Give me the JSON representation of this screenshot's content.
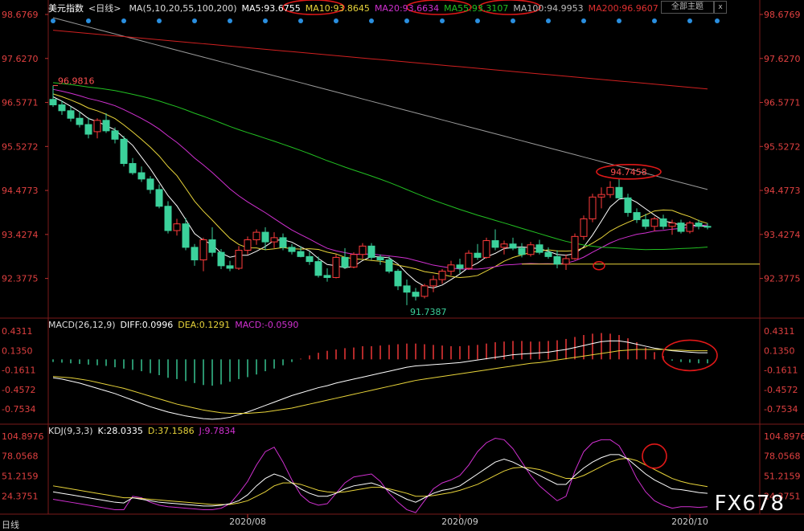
{
  "header": {
    "title": "美元指数",
    "period": "<日线>",
    "ma_label": "MA(5,10,20,55,100,200)",
    "ma5": "MA5:93.6755",
    "ma10": "MA10:93.8645",
    "ma20": "MA20:93.6634",
    "ma55": "MA55:93.3107",
    "ma100": "MA100:94.9953",
    "ma200": "MA200:96.9607",
    "theme_button": "全部主题",
    "close_button": "x"
  },
  "macd_header": {
    "label": "MACD(26,12,9)",
    "diff": "DIFF:0.0996",
    "dea": "DEA:0.1291",
    "macd": "MACD:-0.0590"
  },
  "kdj_header": {
    "label": "KDJ(9,3,3)",
    "k": "K:28.0335",
    "d": "D:37.1586",
    "j": "J:9.7834"
  },
  "watermark": "FX678",
  "tab": "日线",
  "colors": {
    "up": "#ff3b3b",
    "down": "#3bd19b",
    "ma5": "#ffffff",
    "ma10": "#e8d43a",
    "ma20": "#d030d0",
    "ma55": "#22c022",
    "ma100": "#9a9a9a",
    "ma200": "#d02020",
    "dots": "#2a8fe0",
    "annot": "#e01818"
  },
  "chart_data": [
    {
      "type": "candlestick",
      "title": "美元指数 日线",
      "y_ticks": [
        "98.6769",
        "97.6270",
        "96.5771",
        "95.5272",
        "94.4773",
        "93.4274",
        "92.3775"
      ],
      "ylim": [
        91.45,
        98.6769
      ],
      "x_ticks": [
        "2020/08",
        "2020/09",
        "2020/10"
      ],
      "annotations": {
        "high": "96.9816",
        "low": "91.7387",
        "peak": "94.7458",
        "support_level": 92.72
      },
      "ohlc": [
        [
          96.65,
          96.98,
          96.47,
          96.52
        ],
        [
          96.52,
          96.62,
          96.28,
          96.38
        ],
        [
          96.38,
          96.48,
          96.12,
          96.2
        ],
        [
          96.2,
          96.36,
          95.98,
          96.05
        ],
        [
          96.05,
          96.22,
          95.72,
          95.82
        ],
        [
          95.88,
          96.2,
          95.72,
          96.15
        ],
        [
          96.15,
          96.32,
          95.85,
          95.9
        ],
        [
          95.9,
          95.98,
          95.6,
          95.7
        ],
        [
          95.7,
          95.78,
          95.05,
          95.12
        ],
        [
          95.12,
          95.25,
          94.85,
          94.9
        ],
        [
          94.9,
          95.05,
          94.68,
          94.75
        ],
        [
          94.75,
          94.82,
          94.4,
          94.5
        ],
        [
          94.5,
          94.62,
          94.05,
          94.1
        ],
        [
          94.1,
          94.22,
          93.45,
          93.52
        ],
        [
          93.52,
          93.8,
          93.4,
          93.68
        ],
        [
          93.68,
          93.82,
          93.05,
          93.12
        ],
        [
          93.12,
          93.2,
          92.68,
          92.82
        ],
        [
          92.82,
          93.35,
          92.55,
          93.3
        ],
        [
          93.3,
          93.6,
          92.9,
          93.0
        ],
        [
          93.0,
          93.08,
          92.6,
          92.68
        ],
        [
          92.68,
          92.8,
          92.55,
          92.62
        ],
        [
          92.62,
          93.15,
          92.58,
          93.05
        ],
        [
          93.05,
          93.38,
          92.95,
          93.3
        ],
        [
          93.3,
          93.55,
          93.18,
          93.48
        ],
        [
          93.48,
          93.6,
          93.05,
          93.25
        ],
        [
          93.25,
          93.48,
          93.1,
          93.35
        ],
        [
          93.35,
          93.45,
          93.05,
          93.12
        ],
        [
          93.12,
          93.2,
          92.95,
          93.02
        ],
        [
          93.02,
          93.15,
          92.88,
          92.9
        ],
        [
          92.9,
          93.02,
          92.7,
          92.78
        ],
        [
          92.78,
          92.9,
          92.4,
          92.45
        ],
        [
          92.45,
          92.62,
          92.3,
          92.4
        ],
        [
          92.4,
          92.95,
          92.38,
          92.88
        ],
        [
          92.88,
          93.1,
          92.6,
          92.65
        ],
        [
          92.65,
          93.0,
          92.62,
          92.95
        ],
        [
          92.95,
          93.22,
          92.85,
          93.15
        ],
        [
          93.15,
          93.22,
          92.82,
          92.88
        ],
        [
          92.88,
          92.95,
          92.7,
          92.82
        ],
        [
          92.82,
          92.9,
          92.5,
          92.55
        ],
        [
          92.55,
          92.6,
          92.1,
          92.2
        ],
        [
          92.2,
          92.35,
          91.74,
          92.05
        ],
        [
          92.05,
          92.15,
          91.85,
          91.95
        ],
        [
          91.95,
          92.25,
          91.9,
          92.2
        ],
        [
          92.2,
          92.45,
          92.05,
          92.35
        ],
        [
          92.35,
          92.6,
          92.25,
          92.55
        ],
        [
          92.55,
          92.8,
          92.45,
          92.7
        ],
        [
          92.7,
          92.85,
          92.5,
          92.62
        ],
        [
          92.62,
          93.05,
          92.58,
          92.98
        ],
        [
          92.98,
          93.2,
          92.82,
          92.88
        ],
        [
          92.88,
          93.35,
          92.85,
          93.28
        ],
        [
          93.28,
          93.55,
          93.05,
          93.12
        ],
        [
          93.12,
          93.28,
          92.95,
          93.2
        ],
        [
          93.2,
          93.35,
          93.05,
          93.1
        ],
        [
          93.1,
          93.22,
          92.88,
          92.95
        ],
        [
          92.95,
          93.25,
          92.9,
          93.18
        ],
        [
          93.18,
          93.3,
          92.95,
          93.0
        ],
        [
          93.0,
          93.12,
          92.85,
          92.9
        ],
        [
          92.9,
          93.05,
          92.62,
          92.72
        ],
        [
          92.72,
          92.95,
          92.58,
          92.85
        ],
        [
          92.85,
          93.45,
          92.82,
          93.38
        ],
        [
          93.38,
          93.88,
          93.3,
          93.8
        ],
        [
          93.8,
          94.4,
          93.72,
          94.32
        ],
        [
          94.32,
          94.55,
          94.05,
          94.38
        ],
        [
          94.38,
          94.7,
          94.3,
          94.55
        ],
        [
          94.55,
          94.75,
          94.25,
          94.3
        ],
        [
          94.3,
          94.4,
          93.85,
          93.95
        ],
        [
          93.95,
          94.05,
          93.7,
          93.78
        ],
        [
          93.78,
          93.92,
          93.55,
          93.62
        ],
        [
          93.62,
          93.85,
          93.5,
          93.8
        ],
        [
          93.8,
          93.9,
          93.55,
          93.62
        ],
        [
          93.62,
          93.78,
          93.42,
          93.7
        ],
        [
          93.7,
          93.78,
          93.45,
          93.5
        ],
        [
          93.5,
          93.75,
          93.45,
          93.7
        ],
        [
          93.7,
          93.78,
          93.55,
          93.62
        ],
        [
          93.62,
          93.7,
          93.55,
          93.6
        ]
      ]
    },
    {
      "type": "bar",
      "title": "MACD(26,12,9)",
      "y_ticks": [
        "0.4311",
        "0.1350",
        "-0.1611",
        "-0.4572",
        "-0.7534"
      ],
      "ylim": [
        -0.96,
        0.48
      ],
      "macd_hist": [
        -0.04,
        -0.05,
        -0.06,
        -0.07,
        -0.08,
        -0.09,
        -0.1,
        -0.12,
        -0.14,
        -0.16,
        -0.18,
        -0.21,
        -0.24,
        -0.28,
        -0.3,
        -0.33,
        -0.36,
        -0.39,
        -0.4,
        -0.38,
        -0.34,
        -0.3,
        -0.27,
        -0.23,
        -0.18,
        -0.14,
        -0.09,
        -0.04,
        0.01,
        0.06,
        0.1,
        0.13,
        0.15,
        0.17,
        0.18,
        0.2,
        0.2,
        0.21,
        0.22,
        0.23,
        0.24,
        0.24,
        0.23,
        0.22,
        0.21,
        0.2,
        0.2,
        0.21,
        0.22,
        0.24,
        0.26,
        0.27,
        0.28,
        0.28,
        0.27,
        0.27,
        0.28,
        0.29,
        0.31,
        0.34,
        0.37,
        0.39,
        0.4,
        0.39,
        0.37,
        0.32,
        0.26,
        0.18,
        0.11,
        0.05,
        -0.02,
        -0.04,
        -0.05,
        -0.06,
        -0.06
      ],
      "diff": [
        -0.28,
        -0.3,
        -0.33,
        -0.36,
        -0.4,
        -0.44,
        -0.48,
        -0.52,
        -0.57,
        -0.62,
        -0.67,
        -0.72,
        -0.76,
        -0.8,
        -0.83,
        -0.86,
        -0.88,
        -0.9,
        -0.91,
        -0.9,
        -0.88,
        -0.84,
        -0.8,
        -0.75,
        -0.7,
        -0.65,
        -0.6,
        -0.55,
        -0.51,
        -0.47,
        -0.43,
        -0.4,
        -0.36,
        -0.33,
        -0.3,
        -0.27,
        -0.24,
        -0.21,
        -0.18,
        -0.15,
        -0.12,
        -0.1,
        -0.09,
        -0.08,
        -0.07,
        -0.06,
        -0.05,
        -0.03,
        -0.01,
        0.01,
        0.03,
        0.05,
        0.07,
        0.08,
        0.09,
        0.1,
        0.11,
        0.13,
        0.15,
        0.18,
        0.21,
        0.24,
        0.27,
        0.28,
        0.28,
        0.26,
        0.23,
        0.2,
        0.17,
        0.15,
        0.13,
        0.12,
        0.11,
        0.1,
        0.1
      ],
      "dea": [
        -0.26,
        -0.27,
        -0.28,
        -0.3,
        -0.32,
        -0.35,
        -0.38,
        -0.41,
        -0.44,
        -0.48,
        -0.52,
        -0.56,
        -0.6,
        -0.64,
        -0.68,
        -0.71,
        -0.74,
        -0.77,
        -0.79,
        -0.81,
        -0.82,
        -0.82,
        -0.82,
        -0.81,
        -0.8,
        -0.78,
        -0.76,
        -0.74,
        -0.71,
        -0.68,
        -0.65,
        -0.62,
        -0.59,
        -0.56,
        -0.53,
        -0.5,
        -0.47,
        -0.44,
        -0.41,
        -0.38,
        -0.35,
        -0.32,
        -0.3,
        -0.28,
        -0.26,
        -0.24,
        -0.22,
        -0.2,
        -0.18,
        -0.16,
        -0.14,
        -0.12,
        -0.1,
        -0.08,
        -0.06,
        -0.05,
        -0.03,
        -0.01,
        0.01,
        0.03,
        0.05,
        0.07,
        0.09,
        0.11,
        0.13,
        0.14,
        0.15,
        0.15,
        0.15,
        0.15,
        0.14,
        0.14,
        0.13,
        0.13,
        0.13
      ]
    },
    {
      "type": "line",
      "title": "KDJ(9,3,3)",
      "y_ticks": [
        "104.8976",
        "78.0568",
        "51.2159",
        "24.3751"
      ],
      "ylim": [
        0,
        108
      ],
      "k": [
        30,
        28,
        26,
        24,
        22,
        20,
        18,
        16,
        15,
        22,
        20,
        18,
        16,
        15,
        14,
        13,
        12,
        11,
        11,
        12,
        14,
        18,
        26,
        38,
        48,
        54,
        50,
        42,
        34,
        28,
        24,
        24,
        28,
        34,
        38,
        40,
        42,
        38,
        32,
        26,
        20,
        16,
        22,
        28,
        32,
        34,
        38,
        46,
        54,
        62,
        70,
        74,
        70,
        64,
        58,
        52,
        46,
        40,
        40,
        52,
        62,
        70,
        76,
        80,
        80,
        74,
        64,
        54,
        46,
        40,
        34,
        33,
        31,
        29,
        28
      ],
      "d": [
        38,
        36,
        34,
        32,
        30,
        28,
        26,
        24,
        22,
        22,
        21,
        20,
        19,
        18,
        17,
        16,
        15,
        14,
        13,
        13,
        13,
        15,
        18,
        24,
        30,
        38,
        42,
        42,
        40,
        36,
        32,
        30,
        29,
        30,
        32,
        34,
        36,
        36,
        34,
        31,
        28,
        24,
        24,
        25,
        27,
        29,
        32,
        36,
        40,
        46,
        52,
        58,
        62,
        63,
        62,
        60,
        56,
        52,
        48,
        48,
        52,
        58,
        64,
        70,
        74,
        75,
        72,
        66,
        60,
        54,
        48,
        44,
        41,
        39,
        37
      ],
      "j": [
        20,
        18,
        16,
        14,
        12,
        10,
        8,
        6,
        6,
        24,
        22,
        16,
        12,
        10,
        9,
        8,
        7,
        6,
        6,
        8,
        14,
        28,
        44,
        66,
        84,
        90,
        70,
        46,
        26,
        16,
        12,
        14,
        28,
        42,
        50,
        52,
        54,
        44,
        28,
        16,
        6,
        2,
        18,
        34,
        42,
        46,
        52,
        66,
        84,
        96,
        102,
        100,
        88,
        70,
        52,
        38,
        28,
        18,
        24,
        58,
        84,
        96,
        100,
        100,
        92,
        72,
        48,
        30,
        18,
        12,
        8,
        10,
        10,
        9,
        10
      ]
    }
  ]
}
